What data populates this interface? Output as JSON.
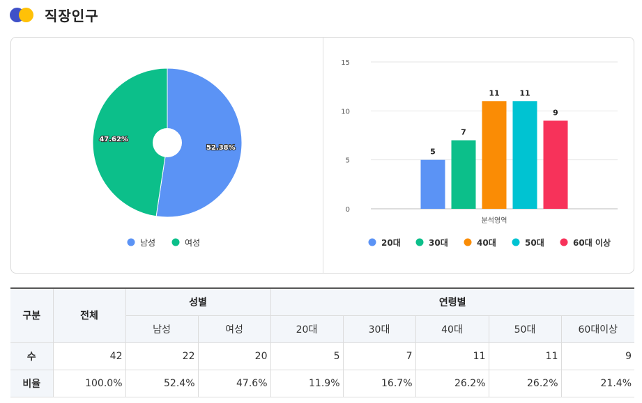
{
  "title": "직장인구",
  "chart_data": [
    {
      "type": "pie",
      "categories": [
        "남성",
        "여성"
      ],
      "values": [
        52.38,
        47.62
      ],
      "labels": [
        "52.38%",
        "47.62%"
      ],
      "colors": [
        "#5b93f5",
        "#0cbf8a"
      ],
      "legend": "bottom"
    },
    {
      "type": "bar",
      "categories": [
        "분석영역"
      ],
      "xlabel": "분석영역",
      "ylim": [
        0,
        15
      ],
      "yticks": [
        0,
        5,
        10,
        15
      ],
      "grid": true,
      "legend": "bottom",
      "series": [
        {
          "name": "20대",
          "values": [
            5
          ],
          "color": "#5b93f5"
        },
        {
          "name": "30대",
          "values": [
            7
          ],
          "color": "#0cbf8a"
        },
        {
          "name": "40대",
          "values": [
            11
          ],
          "color": "#fa8c05"
        },
        {
          "name": "50대",
          "values": [
            11
          ],
          "color": "#00c3d2"
        },
        {
          "name": "60대 이상",
          "values": [
            9
          ],
          "color": "#f7325a"
        }
      ]
    }
  ],
  "table": {
    "col_gubun": "구분",
    "col_total": "전체",
    "group_gender": "성별",
    "group_age": "연령별",
    "gender_cols": [
      "남성",
      "여성"
    ],
    "age_cols": [
      "20대",
      "30대",
      "40대",
      "50대",
      "60대이상"
    ],
    "rows": [
      {
        "label": "수",
        "values": [
          "42",
          "22",
          "20",
          "5",
          "7",
          "11",
          "11",
          "9"
        ]
      },
      {
        "label": "비율",
        "values": [
          "100.0%",
          "52.4%",
          "47.6%",
          "11.9%",
          "16.7%",
          "26.2%",
          "26.2%",
          "21.4%"
        ]
      }
    ]
  }
}
